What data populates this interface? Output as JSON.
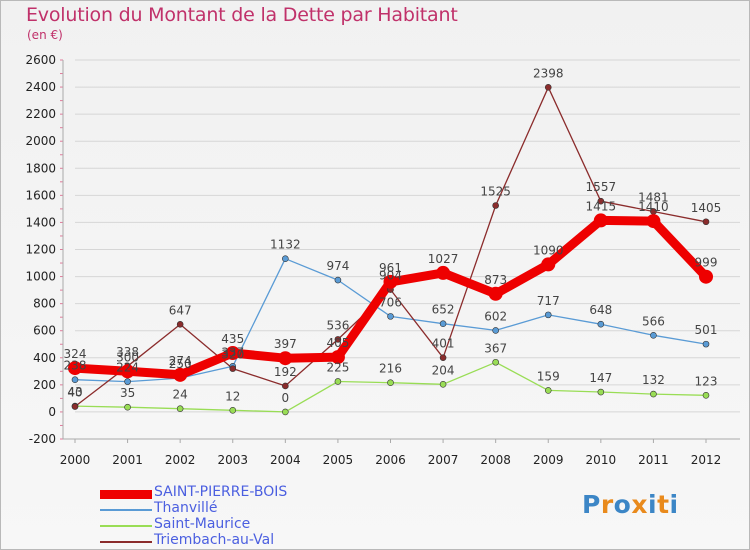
{
  "header": {
    "title": "Evolution du Montant de la Dette par Habitant",
    "unit": "(en €)"
  },
  "chart_data": {
    "type": "line",
    "title": "Evolution du Montant de la Dette par Habitant",
    "subtitle": "(en €)",
    "xlabel": "",
    "ylabel": "",
    "x": [
      "2000",
      "2001",
      "2002",
      "2003",
      "2004",
      "2005",
      "2006",
      "2007",
      "2008",
      "2009",
      "2010",
      "2011",
      "2012"
    ],
    "ylim": [
      -200,
      2600
    ],
    "yticks": [
      -200,
      0,
      200,
      400,
      600,
      800,
      1000,
      1200,
      1400,
      1600,
      1800,
      2000,
      2200,
      2400,
      2600
    ],
    "grid": "horizontal",
    "legend_position": "bottom-left",
    "series": [
      {
        "name": "SAINT-PIERRE-BOIS",
        "color": "#ee0000",
        "width": 9,
        "values": [
          324,
          300,
          274,
          435,
          397,
          405,
          961,
          1027,
          873,
          1090,
          1415,
          1410,
          999
        ],
        "labels": [
          "324",
          "300",
          "274",
          "435",
          "397",
          "405",
          "961",
          "1027",
          "873",
          "1090",
          "1415",
          "1410",
          "999"
        ]
      },
      {
        "name": "Thanvillé",
        "color": "#5a9bd5",
        "width": 1.3,
        "values": [
          238,
          224,
          250,
          337,
          1132,
          974,
          706,
          652,
          602,
          717,
          648,
          566,
          501
        ],
        "labels": [
          "238",
          "224",
          "250",
          "337",
          "1132",
          "974",
          "706",
          "652",
          "602",
          "717",
          "648",
          "566",
          "501"
        ]
      },
      {
        "name": "Saint-Maurice",
        "color": "#99dd55",
        "width": 1.3,
        "values": [
          43,
          35,
          24,
          12,
          0,
          225,
          216,
          204,
          367,
          159,
          147,
          132,
          123
        ],
        "labels": [
          "43",
          "35",
          "24",
          "12",
          "0",
          "225",
          "216",
          "204",
          "367",
          "159",
          "147",
          "132",
          "123"
        ]
      },
      {
        "name": "Triembach-au-Val",
        "color": "#8b2c2c",
        "width": 1.3,
        "values": [
          40,
          338,
          647,
          320,
          192,
          536,
          904,
          401,
          1525,
          2398,
          1557,
          1481,
          1405
        ],
        "labels": [
          "40",
          "338",
          "647",
          "320",
          "192",
          "536",
          "904",
          "401",
          "1525",
          "2398",
          "1557",
          "1481",
          "1405"
        ]
      }
    ]
  },
  "legend": {
    "items": [
      {
        "label": "SAINT-PIERRE-BOIS",
        "color": "#ee0000",
        "thickness": 9
      },
      {
        "label": "Thanvillé",
        "color": "#5a9bd5",
        "thickness": 2
      },
      {
        "label": "Saint-Maurice",
        "color": "#99dd55",
        "thickness": 2
      },
      {
        "label": "Triembach-au-Val",
        "color": "#8b2c2c",
        "thickness": 2
      }
    ]
  },
  "logo": {
    "text": "Proxiti",
    "letters": [
      "P",
      "r",
      "o",
      "x",
      "i",
      "t",
      "i"
    ],
    "colors": [
      "#3c86c6",
      "#e98a1c",
      "#3c86c6",
      "#e98a1c",
      "#3c86c6",
      "#e98a1c",
      "#3c86c6"
    ]
  }
}
